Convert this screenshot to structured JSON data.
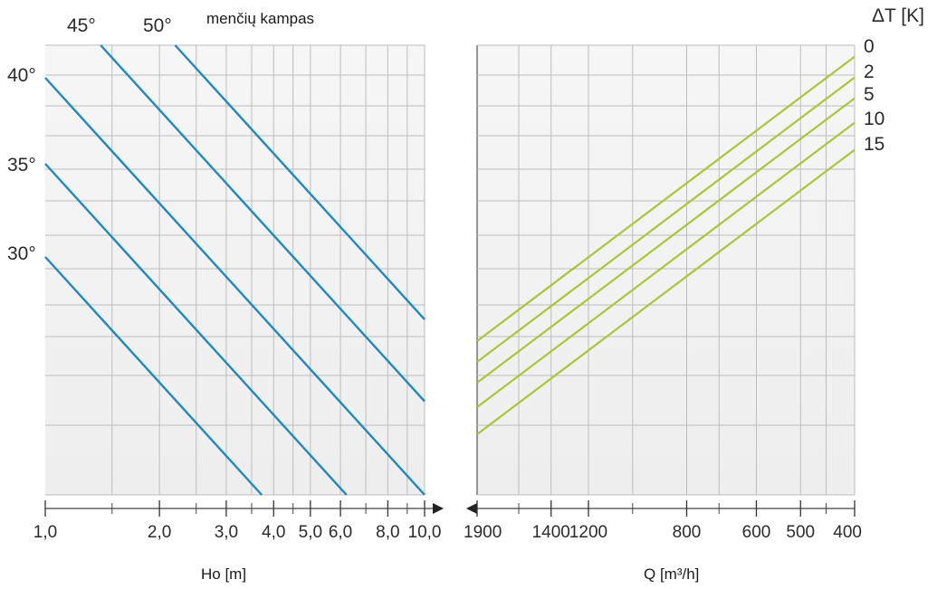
{
  "chart_data": [
    {
      "type": "line",
      "title": "",
      "xlabel": "Ho  [m]",
      "ylabel": "",
      "x_scale": "log",
      "x_tick_labels": [
        "1,0",
        "2,0",
        "3,0",
        "4,0",
        "5,0",
        "6,0",
        "8,0",
        "10,0"
      ],
      "x_ticks": [
        1,
        2,
        3,
        4,
        5,
        6,
        8,
        10
      ],
      "xlim": [
        1,
        10
      ],
      "header_label": "menčių kampas",
      "series": [
        {
          "name": "30°",
          "points": [
            [
              1,
              null
            ],
            [
              4.0,
              null
            ]
          ]
        },
        {
          "name": "35°",
          "points": [
            [
              1,
              null
            ],
            [
              7.2,
              null
            ]
          ]
        },
        {
          "name": "40°",
          "points": [
            [
              1,
              null
            ],
            [
              10,
              null
            ]
          ]
        },
        {
          "name": "45°",
          "points": [
            [
              1.4,
              null
            ],
            [
              10,
              null
            ]
          ]
        },
        {
          "name": "50°",
          "points": [
            [
              2.2,
              null
            ],
            [
              10,
              null
            ]
          ]
        }
      ],
      "series_labels_left": [
        "40°",
        "35°",
        "30°"
      ],
      "series_labels_top": [
        "45°",
        "50°"
      ],
      "line_color": "#1e88c4"
    },
    {
      "type": "line",
      "title": "",
      "xlabel": "Q [m³/h]",
      "ylabel": "",
      "x_scale": "log",
      "x_reversed": true,
      "x_tick_labels": [
        "1900",
        "1400",
        "1200",
        "800",
        "600",
        "500",
        "400"
      ],
      "x_ticks": [
        1900,
        1400,
        1200,
        800,
        600,
        500,
        400
      ],
      "xlim": [
        1900,
        400
      ],
      "legend_title": "ΔT [K]",
      "series": [
        {
          "name": "0"
        },
        {
          "name": "2"
        },
        {
          "name": "5"
        },
        {
          "name": "10"
        },
        {
          "name": "15"
        }
      ],
      "line_color": "#a6c837"
    }
  ],
  "colors": {
    "panel_bg": "#f4f4f4",
    "grid": "#bdbdbd",
    "blue": "#1e88c4",
    "green": "#a6c837",
    "text": "#2b2b2b"
  }
}
